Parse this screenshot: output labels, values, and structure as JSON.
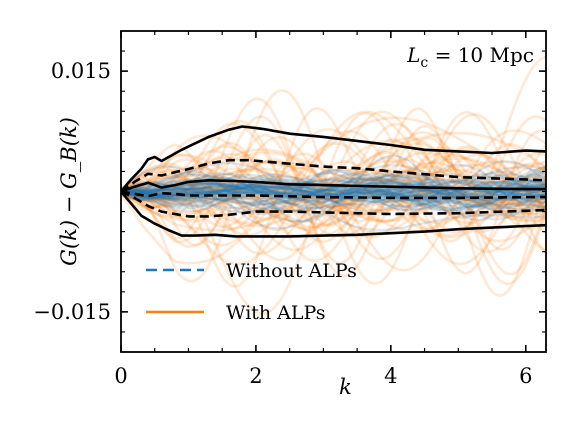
{
  "chart_data": {
    "type": "line",
    "xlabel": "k",
    "ylabel": "G(k) − G_B(k)",
    "xlim": [
      0,
      6.3
    ],
    "ylim": [
      -0.02,
      0.02
    ],
    "x_ticks": [
      0,
      2,
      4,
      6
    ],
    "x_tick_labels": [
      "0",
      "2",
      "4",
      "6"
    ],
    "y_ticks": [
      -0.015,
      0.015
    ],
    "y_tick_labels": [
      "−0.015",
      "0.015"
    ],
    "annotation": "L_c = 10 Mpc",
    "annotation_parts": {
      "L": "L",
      "sub": "c",
      "rest": " = 10 Mpc"
    },
    "legend": {
      "placement": "lower-left",
      "entries": [
        {
          "label": "Without ALPs",
          "style": "dashed",
          "color": "#1f77b4"
        },
        {
          "label": "With ALPs",
          "style": "solid",
          "color": "#ff7f0e"
        }
      ]
    },
    "series": [
      {
        "name": "Without ALPs",
        "color": "#1f77b4",
        "style": "realizations",
        "spread_x": [
          0,
          0.3,
          0.8,
          1.5,
          2.5,
          3.5,
          4.5,
          5.5,
          6.3
        ],
        "spread_y": [
          0.0002,
          0.0012,
          0.0018,
          0.0022,
          0.0024,
          0.0025,
          0.0025,
          0.0025,
          0.0025
        ]
      },
      {
        "name": "With ALPs",
        "color": "#ff7f0e",
        "style": "realizations",
        "spread_x": [
          0,
          0.3,
          0.8,
          1.5,
          2.5,
          3.5,
          4.5,
          5.5,
          6.3
        ],
        "spread_y": [
          0.0003,
          0.003,
          0.006,
          0.0072,
          0.0075,
          0.0075,
          0.0075,
          0.0075,
          0.0075
        ]
      },
      {
        "name": "Upper envelope",
        "color": "#000000",
        "style": "solid",
        "x": [
          0,
          0.15,
          0.3,
          0.4,
          0.5,
          0.6,
          0.75,
          0.9,
          1.1,
          1.3,
          1.6,
          1.8,
          2.1,
          2.5,
          3.0,
          3.5,
          4.0,
          4.5,
          5.0,
          5.5,
          6.0,
          6.3
        ],
        "values": [
          0,
          0.0015,
          0.0028,
          0.004,
          0.0043,
          0.0038,
          0.0045,
          0.0052,
          0.006,
          0.0068,
          0.0077,
          0.0081,
          0.0078,
          0.0072,
          0.0068,
          0.0063,
          0.0058,
          0.0052,
          0.005,
          0.0048,
          0.0051,
          0.005
        ]
      },
      {
        "name": "Lower envelope",
        "color": "#000000",
        "style": "solid",
        "x": [
          0,
          0.15,
          0.3,
          0.5,
          0.7,
          0.9,
          1.1,
          1.4,
          1.7,
          2.0,
          2.5,
          3.0,
          3.5,
          4.0,
          4.5,
          5.0,
          5.5,
          6.0,
          6.3
        ],
        "values": [
          0,
          -0.0015,
          -0.003,
          -0.004,
          -0.0048,
          -0.0055,
          -0.0055,
          -0.0054,
          -0.0056,
          -0.0056,
          -0.0056,
          -0.0055,
          -0.0054,
          -0.0052,
          -0.005,
          -0.0047,
          -0.0045,
          -0.0043,
          -0.0042
        ]
      },
      {
        "name": "Upper dashed",
        "color": "#000000",
        "style": "dashed",
        "x": [
          0,
          0.2,
          0.4,
          0.6,
          0.8,
          1.0,
          1.3,
          1.6,
          1.9,
          2.3,
          3.0,
          3.5,
          4.0,
          5.0,
          6.0,
          6.3
        ],
        "values": [
          0,
          0.0012,
          0.0022,
          0.002,
          0.0024,
          0.0028,
          0.0035,
          0.0039,
          0.0039,
          0.0036,
          0.0031,
          0.0029,
          0.0025,
          0.0018,
          0.0015,
          0.0014
        ]
      },
      {
        "name": "Lower dashed",
        "color": "#000000",
        "style": "dashed",
        "x": [
          0,
          0.2,
          0.4,
          0.6,
          0.8,
          1.0,
          1.3,
          1.6,
          2.0,
          2.5,
          3.0,
          3.5,
          4.0,
          5.0,
          6.0,
          6.3
        ],
        "values": [
          0,
          -0.0008,
          -0.0018,
          -0.0025,
          -0.0028,
          -0.0031,
          -0.0031,
          -0.0029,
          -0.0025,
          -0.0025,
          -0.0026,
          -0.0027,
          -0.0028,
          -0.0027,
          -0.0024,
          -0.0023
        ]
      },
      {
        "name": "Mean upper",
        "color": "#000000",
        "style": "solid",
        "x": [
          0,
          0.2,
          0.4,
          0.6,
          0.8,
          1.0,
          1.3,
          1.7,
          2.0,
          2.5,
          3.0,
          4.0,
          5.0,
          6.0,
          6.3
        ],
        "values": [
          0,
          0.0006,
          0.0011,
          0.0005,
          0.0008,
          0.0012,
          0.0014,
          0.0013,
          0.0012,
          0.0009,
          0.0008,
          0.0006,
          0.0004,
          0.0003,
          0.0003
        ]
      },
      {
        "name": "Mean lower",
        "color": "#000000",
        "style": "dashed",
        "x": [
          0,
          0.2,
          0.4,
          0.6,
          0.8,
          1.0,
          1.5,
          2.0,
          2.5,
          3.0,
          4.0,
          5.0,
          6.0,
          6.3
        ],
        "values": [
          0,
          -0.0003,
          -0.0006,
          -0.0002,
          -0.0003,
          -0.0005,
          -0.0005,
          -0.0005,
          -0.0006,
          -0.0007,
          -0.0008,
          -0.0008,
          -0.0007,
          -0.0007
        ]
      }
    ],
    "grid": false
  }
}
